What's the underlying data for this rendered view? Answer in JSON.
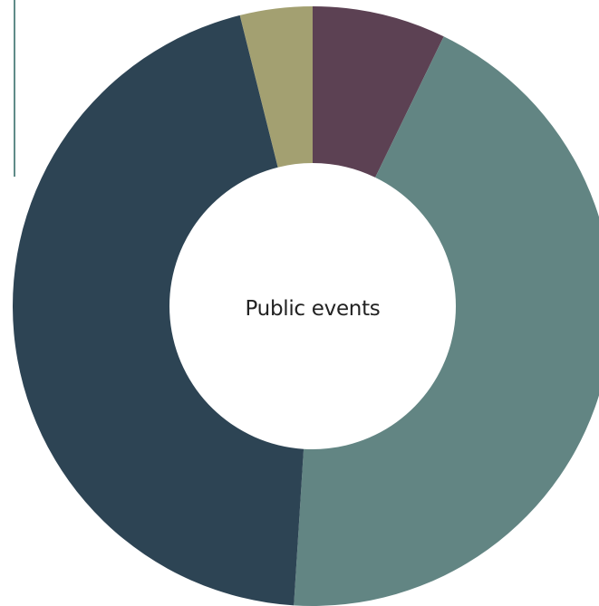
{
  "chart_data": {
    "type": "pie",
    "center_label": "Public events",
    "values": [
      7.2,
      43.8,
      45.1,
      3.9
    ],
    "colors": [
      "#5c4153",
      "#628583",
      "#2d4454",
      "#a3a071"
    ],
    "legend": "none",
    "grid": false
  }
}
